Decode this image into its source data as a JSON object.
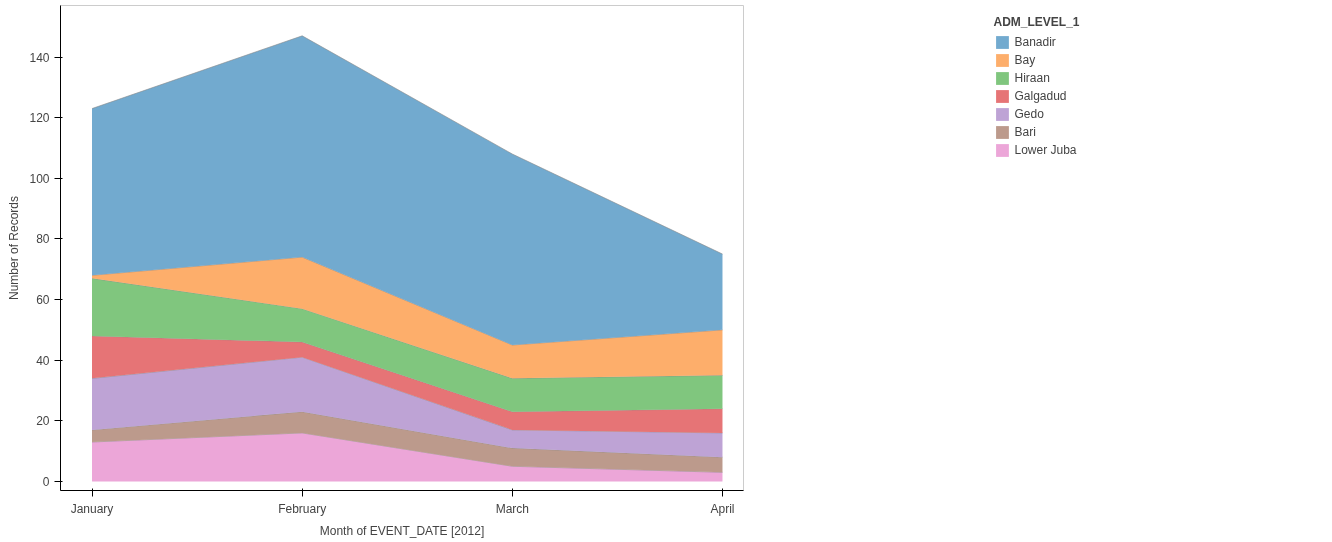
{
  "chart_data": {
    "type": "area",
    "stacked": true,
    "xlabel": "Month of EVENT_DATE [2012]",
    "ylabel": "Number of Records",
    "legend_title": "ADM_LEVEL_1",
    "legend": "right",
    "grid": false,
    "categories": [
      "January",
      "February",
      "March",
      "April"
    ],
    "ylim": [
      -3,
      157
    ],
    "yticks": [
      0,
      20,
      40,
      60,
      80,
      100,
      120,
      140
    ],
    "series": [
      {
        "name": "Lower Juba",
        "color": "#eca6d8",
        "values": [
          13,
          16,
          5,
          3
        ]
      },
      {
        "name": "Bari",
        "color": "#bc9a8c",
        "values": [
          4,
          7,
          6,
          5
        ]
      },
      {
        "name": "Gedo",
        "color": "#bea3d5",
        "values": [
          17,
          18,
          6,
          8
        ]
      },
      {
        "name": "Galgadud",
        "color": "#e67476",
        "values": [
          14,
          5,
          6,
          8
        ]
      },
      {
        "name": "Hiraan",
        "color": "#80c67e",
        "values": [
          19,
          11,
          11,
          11
        ]
      },
      {
        "name": "Bay",
        "color": "#fdae6b",
        "values": [
          1,
          17,
          11,
          15
        ]
      },
      {
        "name": "Banadir",
        "color": "#72aacf",
        "values": [
          55,
          73,
          63,
          25
        ]
      }
    ]
  }
}
